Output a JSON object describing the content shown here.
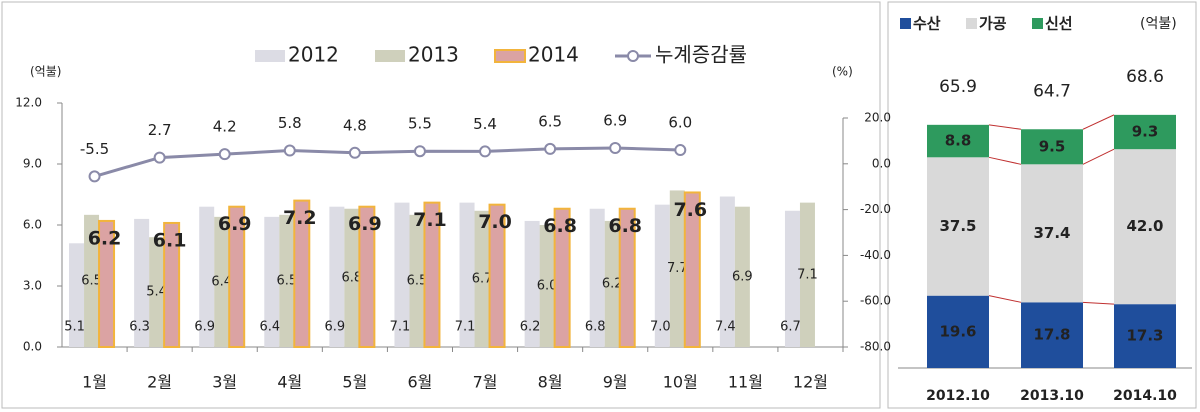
{
  "chart_data": [
    {
      "type": "bar",
      "y_unit": "(억불)",
      "y2_unit": "(%)",
      "categories": [
        "1월",
        "2월",
        "3월",
        "4월",
        "5월",
        "6월",
        "7월",
        "8월",
        "9월",
        "10월",
        "11월",
        "12월"
      ],
      "series": [
        {
          "name": "2012",
          "color": "#dcdce4",
          "values": [
            5.1,
            6.3,
            6.9,
            6.4,
            6.9,
            7.1,
            7.1,
            6.2,
            6.8,
            7.0,
            7.4,
            6.7
          ],
          "value_labels": [
            "5.1",
            "6.3",
            "6.9",
            "6.4",
            "6.9",
            "7.1",
            "7.1",
            "6.2",
            "6.8",
            "7.0",
            "7.4",
            "6.7"
          ]
        },
        {
          "name": "2013",
          "color": "#cfd0bc",
          "values": [
            6.5,
            5.4,
            6.4,
            6.5,
            6.8,
            6.5,
            6.7,
            6.0,
            6.2,
            7.7,
            6.9,
            7.1
          ],
          "value_labels": [
            "6.5",
            "5.4",
            "6.4",
            "6.5",
            "6.8",
            "6.5",
            "6.7",
            "6.0",
            "6.2",
            "7.7",
            "6.9",
            "7.1"
          ]
        },
        {
          "name": "2014",
          "color": "#dba3a3",
          "border": "#f2b43c",
          "values": [
            6.2,
            6.1,
            6.9,
            7.2,
            6.9,
            7.1,
            7.0,
            6.8,
            6.8,
            7.6,
            null,
            null
          ],
          "value_labels": [
            "6.2",
            "6.1",
            "6.9",
            "7.2",
            "6.9",
            "7.1",
            "7.0",
            "6.8",
            "6.8",
            "7.6",
            null,
            null
          ]
        },
        {
          "name": "누계증감률",
          "color": "#8a8aa8",
          "axis": "y2",
          "values": [
            -5.5,
            2.7,
            4.2,
            5.8,
            4.8,
            5.5,
            5.4,
            6.5,
            6.9,
            6.0,
            null,
            null
          ],
          "value_labels": [
            "-5.5",
            "2.7",
            "4.2",
            "5.8",
            "4.8",
            "5.5",
            "5.4",
            "6.5",
            "6.9",
            "6.0",
            null,
            null
          ]
        }
      ],
      "ylim": [
        0,
        12
      ],
      "yticks": [
        {
          "value": 0,
          "label": "0.0"
        },
        {
          "value": 3,
          "label": "3.0"
        },
        {
          "value": 6,
          "label": "6.0"
        },
        {
          "value": 9,
          "label": "9.0"
        },
        {
          "value": 12,
          "label": "12.0"
        }
      ],
      "y2lim": [
        -80,
        20
      ],
      "y2ticks": [
        {
          "value": -80,
          "label": "-80.0"
        },
        {
          "value": -60,
          "label": "-60.0"
        },
        {
          "value": -40,
          "label": "-40.0"
        },
        {
          "value": -20,
          "label": "-20.0"
        },
        {
          "value": 0,
          "label": "0.0"
        },
        {
          "value": 20,
          "label": "20.0"
        }
      ]
    },
    {
      "type": "stacked_bar",
      "unit": "(억불)",
      "categories": [
        "2012.10",
        "2013.10",
        "2014.10"
      ],
      "series": [
        {
          "name": "수산",
          "color": "#1f4e9c",
          "values": [
            19.6,
            17.8,
            17.3
          ]
        },
        {
          "name": "가공",
          "color": "#d9d9d9",
          "values": [
            37.5,
            37.4,
            42.0
          ],
          "value_labels": [
            "37.5",
            "37.4",
            "42.0"
          ]
        },
        {
          "name": "신선",
          "color": "#2e9a5e",
          "values": [
            8.8,
            9.5,
            9.3
          ]
        }
      ],
      "totals": [
        65.9,
        64.7,
        68.6
      ]
    }
  ]
}
